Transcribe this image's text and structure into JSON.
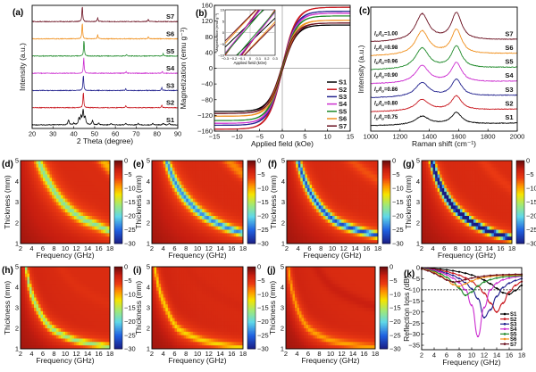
{
  "colors": {
    "S1": "#000000",
    "S2": "#c8161d",
    "S3": "#23238f",
    "S4": "#cc2fd0",
    "S5": "#1f8a2a",
    "S6": "#f0901e",
    "S7": "#6a1020"
  },
  "samples": [
    "S1",
    "S2",
    "S3",
    "S4",
    "S5",
    "S6",
    "S7"
  ],
  "chart_data": [
    {
      "panel": "(a)",
      "type": "line",
      "xlabel": "2 Theta (degree)",
      "ylabel": "Intensity (a.u.)",
      "xlim": [
        20,
        90
      ],
      "xticks": [
        20,
        30,
        40,
        50,
        60,
        70,
        80,
        90
      ],
      "stacked": true,
      "series": [
        {
          "name": "S1",
          "peaks": [
            [
              37.5,
              0.35
            ],
            [
              40,
              0.12
            ],
            [
              42.5,
              0.45
            ],
            [
              43.5,
              0.55
            ],
            [
              44.5,
              1.0
            ],
            [
              45.5,
              0.5
            ],
            [
              49,
              0.3
            ],
            [
              52,
              0.12
            ],
            [
              58,
              0.1
            ],
            [
              65,
              0.1
            ],
            [
              71,
              0.1
            ],
            [
              78,
              0.1
            ],
            [
              83,
              0.12
            ],
            [
              86,
              0.1
            ]
          ]
        },
        {
          "name": "S2",
          "peaks": [
            [
              44.6,
              1.0
            ],
            [
              65.0,
              0.12
            ],
            [
              82.3,
              0.18
            ]
          ]
        },
        {
          "name": "S3",
          "peaks": [
            [
              44.6,
              1.0
            ],
            [
              65.0,
              0.12
            ],
            [
              82.3,
              0.18
            ]
          ]
        },
        {
          "name": "S4",
          "peaks": [
            [
              44.8,
              1.0
            ],
            [
              65.2,
              0.1
            ],
            [
              82.6,
              0.12
            ]
          ]
        },
        {
          "name": "S5",
          "peaks": [
            [
              44.9,
              1.0
            ],
            [
              65.4,
              0.1
            ],
            [
              83.0,
              0.15
            ]
          ]
        },
        {
          "name": "S6",
          "peaks": [
            [
              44.1,
              1.0
            ],
            [
              51.5,
              0.25
            ],
            [
              75.8,
              0.12
            ]
          ]
        },
        {
          "name": "S7",
          "peaks": [
            [
              44.1,
              1.0
            ],
            [
              51.5,
              0.25
            ],
            [
              75.8,
              0.15
            ]
          ]
        }
      ]
    },
    {
      "panel": "(b)",
      "type": "line",
      "xlabel": "Applied field (kOe)",
      "ylabel": "Magnetization (emu g⁻¹)",
      "xlim": [
        -15,
        15
      ],
      "ylim": [
        -160,
        160
      ],
      "xticks": [
        -15,
        -10,
        -5,
        0,
        5,
        10,
        15
      ],
      "yticks": [
        -160,
        -120,
        -80,
        -40,
        0,
        40,
        80,
        120,
        160
      ],
      "legend": "bottom-right",
      "series": [
        {
          "name": "S1",
          "saturation_magnetization": 110,
          "coercivity_kOe": 0.12
        },
        {
          "name": "S2",
          "saturation_magnetization": 155,
          "coercivity_kOe": 0.1
        },
        {
          "name": "S3",
          "saturation_magnetization": 145,
          "coercivity_kOe": 0.1
        },
        {
          "name": "S4",
          "saturation_magnetization": 140,
          "coercivity_kOe": 0.1
        },
        {
          "name": "S5",
          "saturation_magnetization": 133,
          "coercivity_kOe": 0.08
        },
        {
          "name": "S6",
          "saturation_magnetization": 122,
          "coercivity_kOe": 0.18
        },
        {
          "name": "S7",
          "saturation_magnetization": 115,
          "coercivity_kOe": 0.2
        }
      ],
      "inset": {
        "xlabel": "Applied field (kOe)",
        "ylabel": "Magnetization (emu g⁻¹)",
        "xlim": [
          -0.3,
          0.3
        ],
        "ylim": [
          -10,
          10
        ],
        "xticks": [
          -0.3,
          -0.2,
          -0.1,
          0.0,
          0.1,
          0.2,
          0.3
        ],
        "yticks": [
          -10,
          -5,
          0,
          5,
          10
        ]
      }
    },
    {
      "panel": "(c)",
      "type": "line",
      "xlabel": "Raman shift (cm⁻¹)",
      "ylabel": "Intensity (a.u.)",
      "xlim": [
        1000,
        2000
      ],
      "xticks": [
        1000,
        1200,
        1400,
        1600,
        1800,
        2000
      ],
      "stacked": true,
      "D_band": 1350,
      "G_band": 1585,
      "ratio_label": {
        "I": "I",
        "D": "D",
        "G": "G"
      },
      "series": [
        {
          "name": "S1",
          "ratio": "0.75"
        },
        {
          "name": "S2",
          "ratio": "0.80"
        },
        {
          "name": "S3",
          "ratio": "0.86"
        },
        {
          "name": "S4",
          "ratio": "0.90"
        },
        {
          "name": "S5",
          "ratio": "0.96"
        },
        {
          "name": "S6",
          "ratio": "0.98"
        },
        {
          "name": "S7",
          "ratio": "1.00"
        }
      ]
    },
    {
      "type": "heatmap",
      "xlabel": "Frequency (GHz)",
      "ylabel": "Thickness (mm)",
      "xlim": [
        2,
        18
      ],
      "ylim": [
        1,
        5
      ],
      "xticks": [
        2,
        4,
        6,
        8,
        10,
        12,
        14,
        16,
        18
      ],
      "yticks": [
        1,
        2,
        3,
        4,
        5
      ],
      "colorbar": {
        "range": [
          -30,
          0
        ],
        "ticks": [
          0,
          -5,
          -10,
          -15,
          -20,
          -25,
          -30
        ]
      },
      "panels": [
        {
          "panel": "(d)",
          "min_RL": -14,
          "second_band_RL": -11,
          "peak_curve": [
            [
              5.2,
              5
            ],
            [
              7,
              4
            ],
            [
              9.5,
              3
            ],
            [
              13,
              2.2
            ],
            [
              15.5,
              1.9
            ],
            [
              18,
              1.6
            ]
          ]
        },
        {
          "panel": "(e)",
          "min_RL": -20,
          "second_band_RL": -9,
          "peak_curve": [
            [
              4.6,
              5
            ],
            [
              6,
              4
            ],
            [
              8.5,
              3
            ],
            [
              12,
              2.2
            ],
            [
              18,
              1.5
            ]
          ]
        },
        {
          "panel": "(f)",
          "min_RL": -23,
          "second_band_RL": -7,
          "peak_curve": [
            [
              4,
              5
            ],
            [
              5.2,
              4
            ],
            [
              7.2,
              3
            ],
            [
              11,
              2
            ],
            [
              18,
              1.4
            ]
          ]
        },
        {
          "panel": "(g)",
          "min_RL": -32,
          "second_band_RL": -6,
          "peak_curve": [
            [
              3.8,
              5
            ],
            [
              5,
              4
            ],
            [
              7,
              3
            ],
            [
              10,
              2.2
            ],
            [
              18,
              1.25
            ]
          ]
        },
        {
          "panel": "(h)",
          "min_RL": -13,
          "second_band_RL": -5,
          "peak_curve": [
            [
              3,
              5
            ],
            [
              3.6,
              4
            ],
            [
              5,
              3
            ],
            [
              7.5,
              2
            ],
            [
              12,
              1.4
            ],
            [
              18,
              1.1
            ]
          ]
        },
        {
          "panel": "(i)",
          "min_RL": -8,
          "second_band_RL": -4,
          "peak_curve": [
            [
              2.5,
              5
            ],
            [
              3.2,
              4
            ],
            [
              4.5,
              3
            ],
            [
              6.5,
              2
            ],
            [
              11,
              1.4
            ],
            [
              18,
              1.05
            ]
          ]
        },
        {
          "panel": "(j)",
          "min_RL": -6,
          "second_band_RL": -3,
          "peak_curve": [
            [
              2.4,
              5
            ],
            [
              3,
              4
            ],
            [
              4,
              3
            ],
            [
              6,
              2
            ],
            [
              10,
              1.4
            ],
            [
              18,
              1.05
            ]
          ]
        }
      ]
    },
    {
      "panel": "(k)",
      "type": "line",
      "xlabel": "Frequency (GHz)",
      "ylabel": "Reflection loss (dB)",
      "xlim": [
        2,
        18
      ],
      "ylim": [
        -37,
        0
      ],
      "xticks": [
        2,
        4,
        6,
        8,
        10,
        12,
        14,
        16,
        18
      ],
      "yticks": [
        0,
        -5,
        -10,
        -15,
        -20,
        -25,
        -30,
        -35
      ],
      "reference_line": -10,
      "legend": "bottom-right",
      "x": [
        2,
        3,
        4,
        5,
        6,
        7,
        8,
        9,
        10,
        11,
        12,
        13,
        14,
        15,
        16,
        17,
        18
      ],
      "series": [
        {
          "name": "S1",
          "values": [
            -0.1,
            -0.2,
            -0.4,
            -0.7,
            -1.0,
            -1.4,
            -1.9,
            -2.5,
            -3.3,
            -4.3,
            -5.6,
            -7.3,
            -9.3,
            -11.3,
            -12.0,
            -10.3,
            -8.0
          ]
        },
        {
          "name": "S2",
          "values": [
            -0.2,
            -0.4,
            -0.8,
            -1.2,
            -1.8,
            -2.5,
            -3.4,
            -4.6,
            -6.2,
            -8.4,
            -11.5,
            -16,
            -20,
            -16,
            -11,
            -8,
            -6.3
          ]
        },
        {
          "name": "S3",
          "values": [
            -0.3,
            -0.6,
            -1.1,
            -1.7,
            -2.5,
            -3.5,
            -4.9,
            -6.8,
            -9.5,
            -14,
            -22.5,
            -19,
            -13,
            -9,
            -7,
            -5.8,
            -5
          ]
        },
        {
          "name": "S4",
          "values": [
            -0.3,
            -0.7,
            -1.3,
            -2.1,
            -3.2,
            -4.7,
            -6.8,
            -10,
            -17,
            -31,
            -18,
            -10,
            -7,
            -5.5,
            -4.7,
            -4.2,
            -3.9
          ]
        },
        {
          "name": "S5",
          "values": [
            -0.4,
            -0.9,
            -1.7,
            -2.8,
            -4.3,
            -6.4,
            -9.3,
            -12.5,
            -11,
            -8.3,
            -6.5,
            -5.4,
            -4.7,
            -4.2,
            -3.9,
            -3.7,
            -3.6
          ]
        },
        {
          "name": "S6",
          "values": [
            -0.5,
            -1.2,
            -2.2,
            -3.6,
            -5.4,
            -7.6,
            -8.5,
            -7.3,
            -6,
            -5,
            -4.4,
            -4,
            -3.7,
            -3.5,
            -3.4,
            -3.3,
            -3.2
          ]
        },
        {
          "name": "S7",
          "values": [
            -0.6,
            -1.4,
            -2.6,
            -4.0,
            -5.6,
            -6.5,
            -6.2,
            -5.4,
            -4.7,
            -4.2,
            -3.8,
            -3.5,
            -3.3,
            -3.2,
            -3.1,
            -3.0,
            -3.0
          ]
        }
      ]
    }
  ]
}
